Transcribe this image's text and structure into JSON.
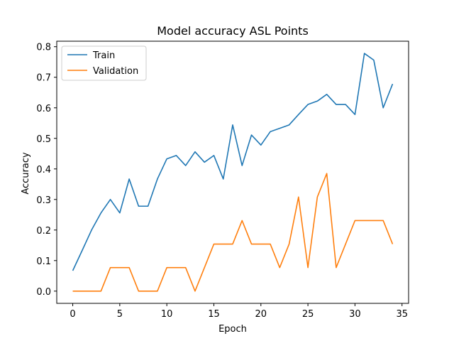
{
  "chart_data": {
    "type": "line",
    "title": "Model accuracy ASL Points",
    "xlabel": "Epoch",
    "ylabel": "Accuracy",
    "xlim": [
      -1.7,
      35.7
    ],
    "ylim": [
      -0.04,
      0.818
    ],
    "xticks": [
      0,
      5,
      10,
      15,
      20,
      25,
      30,
      35
    ],
    "yticks": [
      0.0,
      0.1,
      0.2,
      0.3,
      0.4,
      0.5,
      0.6,
      0.7,
      0.8
    ],
    "grid": false,
    "legend_position": "upper-left",
    "series": [
      {
        "name": "Train",
        "color": "#1f77b4",
        "x": [
          0,
          1,
          2,
          3,
          4,
          5,
          6,
          7,
          8,
          9,
          10,
          11,
          12,
          13,
          14,
          15,
          16,
          17,
          18,
          19,
          20,
          21,
          22,
          23,
          24,
          25,
          26,
          27,
          28,
          29,
          30,
          31,
          32,
          33,
          34
        ],
        "y": [
          0.067,
          0.133,
          0.2,
          0.256,
          0.3,
          0.256,
          0.367,
          0.278,
          0.278,
          0.367,
          0.433,
          0.444,
          0.411,
          0.456,
          0.422,
          0.444,
          0.367,
          0.544,
          0.411,
          0.511,
          0.478,
          0.522,
          0.533,
          0.544,
          0.578,
          0.611,
          0.622,
          0.644,
          0.611,
          0.611,
          0.578,
          0.778,
          0.756,
          0.6,
          0.678
        ]
      },
      {
        "name": "Validation",
        "color": "#ff7f0e",
        "x": [
          0,
          1,
          2,
          3,
          4,
          5,
          6,
          7,
          8,
          9,
          10,
          11,
          12,
          13,
          14,
          15,
          16,
          17,
          18,
          19,
          20,
          21,
          22,
          23,
          24,
          25,
          26,
          27,
          28,
          29,
          30,
          31,
          32,
          33,
          34
        ],
        "y": [
          0.0,
          0.0,
          0.0,
          0.0,
          0.077,
          0.077,
          0.077,
          0.0,
          0.0,
          0.0,
          0.077,
          0.077,
          0.077,
          0.0,
          0.077,
          0.154,
          0.154,
          0.154,
          0.231,
          0.154,
          0.154,
          0.154,
          0.077,
          0.154,
          0.308,
          0.077,
          0.308,
          0.385,
          0.077,
          0.154,
          0.231,
          0.231,
          0.231,
          0.231,
          0.154
        ]
      }
    ]
  }
}
